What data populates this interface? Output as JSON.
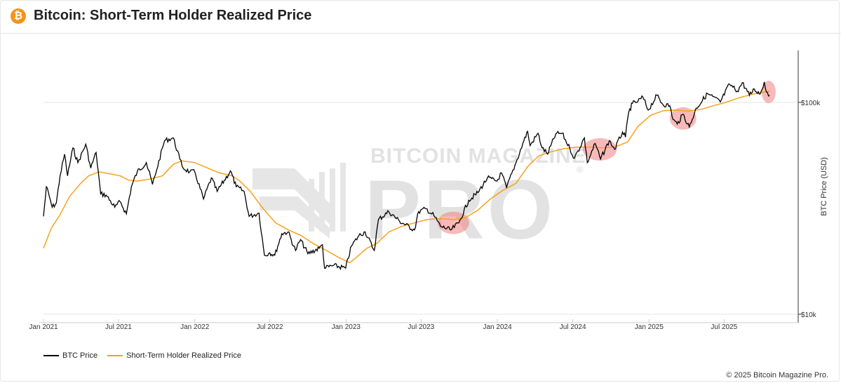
{
  "header": {
    "icon_glyph": "₿",
    "title": "Bitcoin: Short-Term Holder Realized Price"
  },
  "legend": {
    "items": [
      {
        "label": "BTC Price",
        "color": "#000000"
      },
      {
        "label": "Short-Term Holder Realized Price",
        "color": "#f7a21b"
      }
    ]
  },
  "footer": {
    "copyright": "© 2025 Bitcoin Magazine Pro."
  },
  "watermark": {
    "line1": "BITCOIN MAGAZINE",
    "line2": "PRO",
    "registered": "®"
  },
  "colors": {
    "btc_price": "#000000",
    "sth_realized": "#f7a21b",
    "highlight": "#f08080",
    "brand": "#f7931a"
  },
  "chart_data": {
    "type": "line",
    "title": "Bitcoin: Short-Term Holder Realized Price",
    "xlabel": "",
    "ylabel": "BTC Price (USD)",
    "y_scale": "log",
    "ylim": [
      10000,
      160000
    ],
    "xlim": [
      "2021-01-01",
      "2025-11-01"
    ],
    "x_ticks": [
      {
        "date": "2021-01-01",
        "label": "Jan 2021"
      },
      {
        "date": "2021-07-01",
        "label": "Jul 2021"
      },
      {
        "date": "2022-01-01",
        "label": "Jan 2022"
      },
      {
        "date": "2022-07-01",
        "label": "Jul 2022"
      },
      {
        "date": "2023-01-01",
        "label": "Jan 2023"
      },
      {
        "date": "2023-07-01",
        "label": "Jul 2023"
      },
      {
        "date": "2024-01-01",
        "label": "Jan 2024"
      },
      {
        "date": "2024-07-01",
        "label": "Jul 2024"
      },
      {
        "date": "2025-01-01",
        "label": "Jan 2025"
      },
      {
        "date": "2025-07-01",
        "label": "Jul 2025"
      }
    ],
    "y_ticks": [
      {
        "value": 100000,
        "label": "$100k"
      },
      {
        "value": 10000,
        "label": "$10k"
      }
    ],
    "grid": true,
    "legend_position": "bottom-left",
    "series": [
      {
        "name": "BTC Price",
        "color": "#000000",
        "points": [
          [
            "2021-01-01",
            29000
          ],
          [
            "2021-01-08",
            40000
          ],
          [
            "2021-01-15",
            36000
          ],
          [
            "2021-01-22",
            32000
          ],
          [
            "2021-02-01",
            33500
          ],
          [
            "2021-02-10",
            45000
          ],
          [
            "2021-02-21",
            57000
          ],
          [
            "2021-02-28",
            45000
          ],
          [
            "2021-03-13",
            61000
          ],
          [
            "2021-03-25",
            52000
          ],
          [
            "2021-04-13",
            63500
          ],
          [
            "2021-04-25",
            49000
          ],
          [
            "2021-05-08",
            58000
          ],
          [
            "2021-05-19",
            37000
          ],
          [
            "2021-06-01",
            36500
          ],
          [
            "2021-06-22",
            32000
          ],
          [
            "2021-07-05",
            34000
          ],
          [
            "2021-07-20",
            29800
          ],
          [
            "2021-08-01",
            40000
          ],
          [
            "2021-08-15",
            47000
          ],
          [
            "2021-09-06",
            52000
          ],
          [
            "2021-09-21",
            41000
          ],
          [
            "2021-10-01",
            48000
          ],
          [
            "2021-10-20",
            66000
          ],
          [
            "2021-11-10",
            68000
          ],
          [
            "2021-11-26",
            54000
          ],
          [
            "2021-12-04",
            49000
          ],
          [
            "2021-12-20",
            47000
          ],
          [
            "2022-01-01",
            47000
          ],
          [
            "2022-01-22",
            35000
          ],
          [
            "2022-02-10",
            44000
          ],
          [
            "2022-02-24",
            38000
          ],
          [
            "2022-03-28",
            47500
          ],
          [
            "2022-04-11",
            40000
          ],
          [
            "2022-04-30",
            38000
          ],
          [
            "2022-05-12",
            29000
          ],
          [
            "2022-06-05",
            30000
          ],
          [
            "2022-06-18",
            19000
          ],
          [
            "2022-07-01",
            19500
          ],
          [
            "2022-07-13",
            19000
          ],
          [
            "2022-07-30",
            24000
          ],
          [
            "2022-08-14",
            24500
          ],
          [
            "2022-09-01",
            20000
          ],
          [
            "2022-09-13",
            22500
          ],
          [
            "2022-10-01",
            19300
          ],
          [
            "2022-10-28",
            20500
          ],
          [
            "2022-11-05",
            21300
          ],
          [
            "2022-11-10",
            16500
          ],
          [
            "2022-12-01",
            17000
          ],
          [
            "2022-12-31",
            16500
          ],
          [
            "2023-01-14",
            21000
          ],
          [
            "2023-02-01",
            23500
          ],
          [
            "2023-02-16",
            24500
          ],
          [
            "2023-03-10",
            20000
          ],
          [
            "2023-03-20",
            28000
          ],
          [
            "2023-04-14",
            30500
          ],
          [
            "2023-05-10",
            27500
          ],
          [
            "2023-06-15",
            25000
          ],
          [
            "2023-06-25",
            30500
          ],
          [
            "2023-07-13",
            31500
          ],
          [
            "2023-08-01",
            29200
          ],
          [
            "2023-08-17",
            26000
          ],
          [
            "2023-09-11",
            25000
          ],
          [
            "2023-09-30",
            27000
          ],
          [
            "2023-10-24",
            34500
          ],
          [
            "2023-11-15",
            37500
          ],
          [
            "2023-12-08",
            44000
          ],
          [
            "2023-12-31",
            42500
          ],
          [
            "2024-01-11",
            46500
          ],
          [
            "2024-01-23",
            39500
          ],
          [
            "2024-02-15",
            52000
          ],
          [
            "2024-03-05",
            66000
          ],
          [
            "2024-03-14",
            73000
          ],
          [
            "2024-03-20",
            62500
          ],
          [
            "2024-04-08",
            71500
          ],
          [
            "2024-04-18",
            61000
          ],
          [
            "2024-05-01",
            57000
          ],
          [
            "2024-05-21",
            71000
          ],
          [
            "2024-06-05",
            71500
          ],
          [
            "2024-06-24",
            60500
          ],
          [
            "2024-07-05",
            54500
          ],
          [
            "2024-07-29",
            68000
          ],
          [
            "2024-08-05",
            52000
          ],
          [
            "2024-08-24",
            64000
          ],
          [
            "2024-09-06",
            54000
          ],
          [
            "2024-09-27",
            66000
          ],
          [
            "2024-10-10",
            60000
          ],
          [
            "2024-10-29",
            72500
          ],
          [
            "2024-11-05",
            68500
          ],
          [
            "2024-11-13",
            90000
          ],
          [
            "2024-11-22",
            99000
          ],
          [
            "2024-12-05",
            101000
          ],
          [
            "2024-12-17",
            106000
          ],
          [
            "2024-12-30",
            92000
          ],
          [
            "2025-01-20",
            108000
          ],
          [
            "2025-02-03",
            98000
          ],
          [
            "2025-02-20",
            96500
          ],
          [
            "2025-02-28",
            83000
          ],
          [
            "2025-03-10",
            79000
          ],
          [
            "2025-03-24",
            88000
          ],
          [
            "2025-04-08",
            76500
          ],
          [
            "2025-04-25",
            94000
          ],
          [
            "2025-05-22",
            110000
          ],
          [
            "2025-06-22",
            100500
          ],
          [
            "2025-07-14",
            122000
          ],
          [
            "2025-08-02",
            113000
          ],
          [
            "2025-08-14",
            124000
          ],
          [
            "2025-08-31",
            108000
          ],
          [
            "2025-09-12",
            115500
          ],
          [
            "2025-09-26",
            109500
          ],
          [
            "2025-10-06",
            125000
          ],
          [
            "2025-10-11",
            112000
          ],
          [
            "2025-10-19",
            108000
          ]
        ]
      },
      {
        "name": "Short-Term Holder Realized Price",
        "color": "#f7a21b",
        "points": [
          [
            "2021-01-01",
            20500
          ],
          [
            "2021-01-20",
            25500
          ],
          [
            "2021-02-10",
            29500
          ],
          [
            "2021-03-05",
            36000
          ],
          [
            "2021-04-01",
            41500
          ],
          [
            "2021-04-20",
            45000
          ],
          [
            "2021-05-15",
            47000
          ],
          [
            "2021-06-10",
            46000
          ],
          [
            "2021-07-05",
            45000
          ],
          [
            "2021-07-25",
            43000
          ],
          [
            "2021-08-15",
            42500
          ],
          [
            "2021-09-15",
            43500
          ],
          [
            "2021-10-15",
            45000
          ],
          [
            "2021-11-10",
            51000
          ],
          [
            "2021-12-01",
            53000
          ],
          [
            "2022-01-01",
            52000
          ],
          [
            "2022-02-01",
            49000
          ],
          [
            "2022-03-01",
            46500
          ],
          [
            "2022-04-01",
            45000
          ],
          [
            "2022-04-20",
            42500
          ],
          [
            "2022-05-15",
            38000
          ],
          [
            "2022-06-15",
            31500
          ],
          [
            "2022-07-15",
            27000
          ],
          [
            "2022-08-15",
            25000
          ],
          [
            "2022-09-15",
            23500
          ],
          [
            "2022-10-15",
            21500
          ],
          [
            "2022-11-15",
            20000
          ],
          [
            "2022-12-15",
            18500
          ],
          [
            "2023-01-10",
            17500
          ],
          [
            "2023-02-01",
            19000
          ],
          [
            "2023-02-20",
            20500
          ],
          [
            "2023-03-15",
            21500
          ],
          [
            "2023-04-15",
            24500
          ],
          [
            "2023-05-15",
            26000
          ],
          [
            "2023-06-15",
            27000
          ],
          [
            "2023-07-15",
            28000
          ],
          [
            "2023-08-15",
            28300
          ],
          [
            "2023-09-15",
            28000
          ],
          [
            "2023-10-15",
            28500
          ],
          [
            "2023-11-15",
            31000
          ],
          [
            "2023-12-15",
            35000
          ],
          [
            "2024-01-15",
            38500
          ],
          [
            "2024-02-15",
            41500
          ],
          [
            "2024-03-15",
            50000
          ],
          [
            "2024-04-10",
            56000
          ],
          [
            "2024-05-10",
            58500
          ],
          [
            "2024-06-10",
            60500
          ],
          [
            "2024-07-10",
            61500
          ],
          [
            "2024-08-10",
            61500
          ],
          [
            "2024-09-10",
            61000
          ],
          [
            "2024-10-10",
            61500
          ],
          [
            "2024-11-10",
            65000
          ],
          [
            "2024-12-05",
            77000
          ],
          [
            "2025-01-05",
            87000
          ],
          [
            "2025-02-05",
            91500
          ],
          [
            "2025-03-05",
            92000
          ],
          [
            "2025-04-05",
            91000
          ],
          [
            "2025-05-05",
            92500
          ],
          [
            "2025-06-05",
            96500
          ],
          [
            "2025-07-05",
            100000
          ],
          [
            "2025-08-05",
            105000
          ],
          [
            "2025-09-05",
            109000
          ],
          [
            "2025-10-05",
            112000
          ],
          [
            "2025-10-19",
            113000
          ]
        ]
      }
    ],
    "highlights": [
      {
        "label": "",
        "x_start": "2023-08-10",
        "x_end": "2023-10-25",
        "y_center": 27000
      },
      {
        "label": "",
        "x_start": "2024-07-25",
        "x_end": "2024-10-15",
        "y_center": 60000
      },
      {
        "label": "",
        "x_start": "2025-02-20",
        "x_end": "2025-04-25",
        "y_center": 84000
      },
      {
        "label": "",
        "x_start": "2025-10-01",
        "x_end": "2025-11-01",
        "y_center": 112000
      }
    ]
  }
}
